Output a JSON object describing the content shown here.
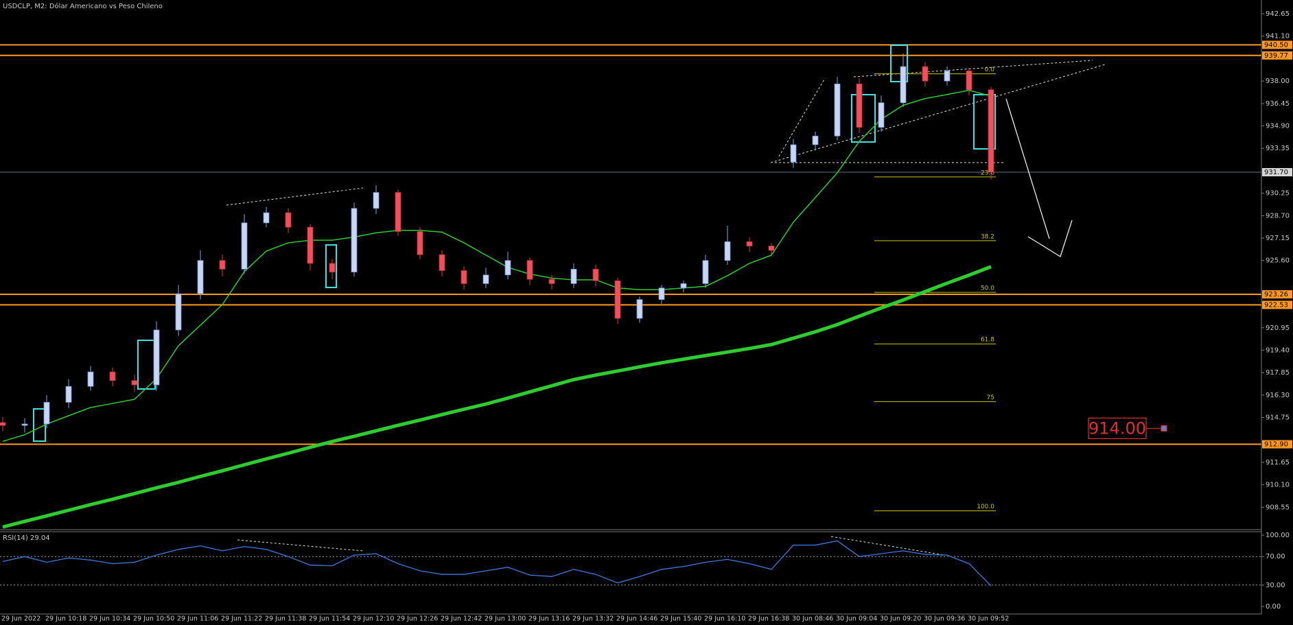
{
  "chart_data": {
    "type": "candlestick",
    "title": "USDCLP, M2:  Dólar Americano vs Peso Chileno",
    "categories": [
      "29 Jun 2022",
      null,
      "29 Jun 10:18",
      null,
      "29 Jun 10:34",
      null,
      "29 Jun 10:50",
      null,
      "29 Jun 11:06",
      null,
      "29 Jun 11:22",
      null,
      "29 Jun 11:38",
      null,
      "29 Jun 11:54",
      null,
      "29 Jun 12:10",
      null,
      "29 Jun 12:26",
      null,
      "29 Jun 12:42",
      null,
      "29 Jun 13:00",
      null,
      "29 Jun 13:16",
      null,
      "29 Jun 13:32",
      null,
      "29 Jun 14:46",
      null,
      "29 Jun 15:40",
      null,
      "29 Jun 16:10",
      null,
      "29 Jun 16:38",
      null,
      "30 Jun 08:46",
      null,
      "30 Jun 09:04",
      null,
      "30 Jun 09:20",
      null,
      "30 Jun 09:36",
      null,
      "30 Jun 09:52",
      null
    ],
    "open": [
      914.4,
      914.2,
      914.3,
      915.8,
      916.9,
      917.9,
      917.3,
      917.0,
      920.8,
      923.3,
      925.6,
      925.0,
      928.2,
      928.9,
      927.9,
      925.4,
      924.8,
      929.2,
      930.3,
      927.6,
      926.0,
      924.9,
      924.0,
      924.6,
      925.6,
      924.3,
      924.0,
      925.0,
      924.2,
      921.6,
      922.9,
      923.7,
      924.0,
      925.6,
      926.9,
      926.6,
      932.4,
      933.6,
      934.2,
      937.8,
      934.8,
      936.5,
      939.0,
      938.0,
      938.7,
      937.4
    ],
    "high": [
      914.8,
      914.7,
      916.3,
      917.4,
      918.3,
      918.2,
      917.7,
      921.4,
      923.9,
      926.3,
      926.0,
      928.8,
      929.3,
      929.2,
      928.1,
      925.7,
      929.6,
      930.8,
      930.5,
      927.9,
      926.3,
      925.2,
      925.1,
      926.2,
      925.8,
      924.6,
      925.4,
      925.3,
      924.4,
      923.1,
      923.9,
      924.2,
      926.0,
      928.0,
      927.2,
      926.8,
      934.0,
      934.5,
      938.3,
      938.2,
      937.0,
      939.9,
      939.3,
      939.0,
      938.9,
      937.6
    ],
    "low": [
      913.8,
      913.7,
      914.0,
      915.4,
      916.6,
      916.9,
      916.5,
      916.6,
      920.4,
      922.9,
      924.5,
      924.7,
      927.9,
      927.5,
      924.9,
      924.3,
      924.5,
      928.8,
      927.3,
      925.7,
      924.5,
      923.6,
      923.7,
      924.3,
      923.9,
      923.6,
      923.7,
      923.8,
      921.2,
      921.3,
      922.6,
      923.4,
      923.7,
      925.3,
      926.2,
      926.0,
      932.0,
      933.2,
      933.9,
      934.4,
      934.5,
      936.2,
      937.6,
      937.7,
      937.0,
      931.2
    ],
    "close": [
      914.2,
      914.3,
      915.8,
      916.9,
      917.9,
      917.3,
      917.0,
      920.8,
      923.3,
      925.6,
      925.0,
      928.2,
      928.9,
      927.9,
      925.4,
      924.8,
      929.2,
      930.3,
      927.6,
      926.0,
      924.9,
      924.0,
      924.6,
      925.6,
      924.3,
      924.0,
      925.0,
      924.2,
      921.6,
      922.9,
      923.7,
      924.0,
      925.6,
      926.9,
      926.6,
      926.3,
      933.6,
      934.2,
      937.8,
      934.8,
      936.5,
      939.0,
      938.0,
      938.7,
      937.4,
      931.7
    ],
    "up_color": "#c8d6f6",
    "down_color": "#f0505a",
    "ylim": [
      907.0,
      943.6
    ],
    "yticks": [
      908.55,
      {
        "value": 910.1,
        "label": "910.10"
      },
      911.65,
      914.75,
      {
        "value": 916.3,
        "label": "916.30"
      },
      917.85,
      {
        "value": 919.4,
        "label": "919.40"
      },
      920.95,
      {
        "value": 925.6,
        "label": "925.60"
      },
      927.15,
      {
        "value": 928.7,
        "label": "928.70"
      },
      930.25,
      933.35,
      {
        "value": 934.9,
        "label": "934.90"
      },
      936.45,
      {
        "value": 938.0,
        "label": "938.00"
      },
      {
        "value": 941.1,
        "label": "941.10"
      },
      942.65
    ],
    "moving_averages": [
      {
        "color": "#2ecc2e",
        "width": 1.5,
        "values": [
          913.1,
          913.56,
          914.3,
          914.87,
          915.44,
          915.72,
          916.01,
          917.43,
          919.71,
          921.13,
          922.55,
          924.83,
          926.25,
          926.82,
          927.0,
          927.0,
          927.22,
          927.51,
          927.68,
          927.68,
          927.56,
          926.82,
          925.97,
          925.12,
          924.66,
          924.38,
          924.26,
          924.26,
          923.7,
          923.58,
          923.58,
          923.7,
          923.81,
          924.55,
          925.4,
          925.97,
          928.25,
          929.95,
          931.66,
          933.83,
          935.36,
          936.33,
          936.79,
          937.07,
          937.36,
          936.96
        ]
      },
      {
        "color": "#2ecc2e",
        "width": 5,
        "values": [
          907.18,
          907.57,
          907.95,
          908.34,
          908.73,
          909.1,
          909.49,
          909.89,
          910.27,
          910.68,
          911.07,
          911.48,
          911.89,
          912.28,
          912.69,
          913.09,
          913.45,
          913.83,
          914.21,
          914.57,
          914.95,
          915.32,
          915.68,
          916.09,
          916.52,
          916.94,
          917.37,
          917.68,
          917.96,
          918.25,
          918.53,
          918.78,
          919.03,
          919.27,
          919.52,
          919.79,
          920.23,
          920.67,
          921.17,
          921.75,
          922.32,
          922.87,
          923.45,
          924.03,
          924.59,
          925.17
        ]
      }
    ],
    "level_color": "#ff9a1f",
    "levels": [
      {
        "value": 940.5,
        "label": "940.50"
      },
      939.77,
      923.26,
      922.53,
      {
        "value": 912.9,
        "label": "912.90"
      }
    ],
    "current_price": {
      "value": 931.7,
      "label": "931.70"
    },
    "fibonacci": {
      "high": 938.5,
      "low": 908.3,
      "color": "#c8c800",
      "levels": [
        {
          "value": 0,
          "label": "0.0"
        },
        23.6,
        38.2,
        {
          "value": 50,
          "label": "50.0"
        },
        61.8,
        75,
        {
          "value": 100,
          "label": "100.0"
        }
      ]
    },
    "annotation": {
      "value": 914,
      "label": "914.00"
    },
    "rsi": {
      "label": "RSI(14) 29.04",
      "color": "#3a7be0",
      "ylim": [
        0,
        100
      ],
      "yticks": [
        {
          "value": 100,
          "label": "100.00"
        },
        {
          "value": 70,
          "label": "70.00"
        },
        {
          "value": 30,
          "label": "30.00"
        },
        {
          "value": 0,
          "label": "0.00"
        }
      ],
      "levels": [
        70,
        30
      ],
      "values": [
        63,
        70,
        62,
        68,
        65,
        60,
        62,
        72,
        80,
        85,
        78,
        84,
        80,
        70,
        58,
        57,
        72,
        74,
        60,
        50,
        45,
        45,
        50,
        55,
        44,
        42,
        52,
        45,
        33,
        42,
        52,
        56,
        62,
        66,
        60,
        52,
        86,
        86,
        92,
        70,
        74,
        78,
        73,
        72,
        60,
        29.04
      ]
    }
  }
}
